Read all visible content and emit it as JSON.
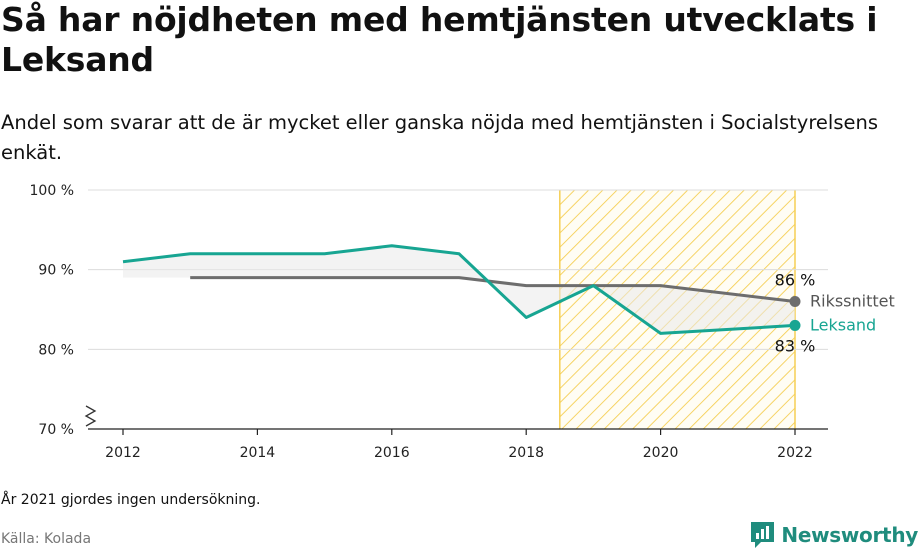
{
  "title": "Så har nöjdheten med hemtjänsten utvecklats i Leksand",
  "subtitle": "Andel som svarar att de är mycket eller ganska nöjda med hemtjänsten i Socialstyrelsens enkät.",
  "note": "År 2021 gjordes ingen undersökning.",
  "source": "Källa: Kolada",
  "brand": {
    "name": "Newsworthy",
    "icon": "newsworthy-logo-icon"
  },
  "chart_data": {
    "type": "line",
    "x_ticks": [
      "2012",
      "2014",
      "2016",
      "2018",
      "2020",
      "2022"
    ],
    "y_ticks": [
      "70 %",
      "80 %",
      "90 %",
      "100 %"
    ],
    "ylim": [
      70,
      100
    ],
    "xlim": [
      2011.6,
      2022.5
    ],
    "axis_break": true,
    "grid": true,
    "highlight_range": [
      2018.5,
      2022
    ],
    "colors": {
      "Leksand": "#17a592",
      "Rikssnittet": "#6d6d6d",
      "highlight": "#f5cf55"
    },
    "series": [
      {
        "name": "Rikssnittet",
        "end_label": "86 %",
        "points": [
          [
            2013,
            89
          ],
          [
            2014,
            89
          ],
          [
            2015,
            89
          ],
          [
            2016,
            89
          ],
          [
            2017,
            89
          ],
          [
            2018,
            88
          ],
          [
            2019,
            88
          ],
          [
            2020,
            88
          ],
          [
            2022,
            86
          ]
        ]
      },
      {
        "name": "Leksand",
        "end_label": "83 %",
        "points": [
          [
            2012,
            91
          ],
          [
            2013,
            92
          ],
          [
            2014,
            92
          ],
          [
            2015,
            92
          ],
          [
            2016,
            93
          ],
          [
            2017,
            92
          ],
          [
            2018,
            84
          ],
          [
            2019,
            88
          ],
          [
            2020,
            82
          ],
          [
            2022,
            83
          ]
        ]
      }
    ]
  }
}
